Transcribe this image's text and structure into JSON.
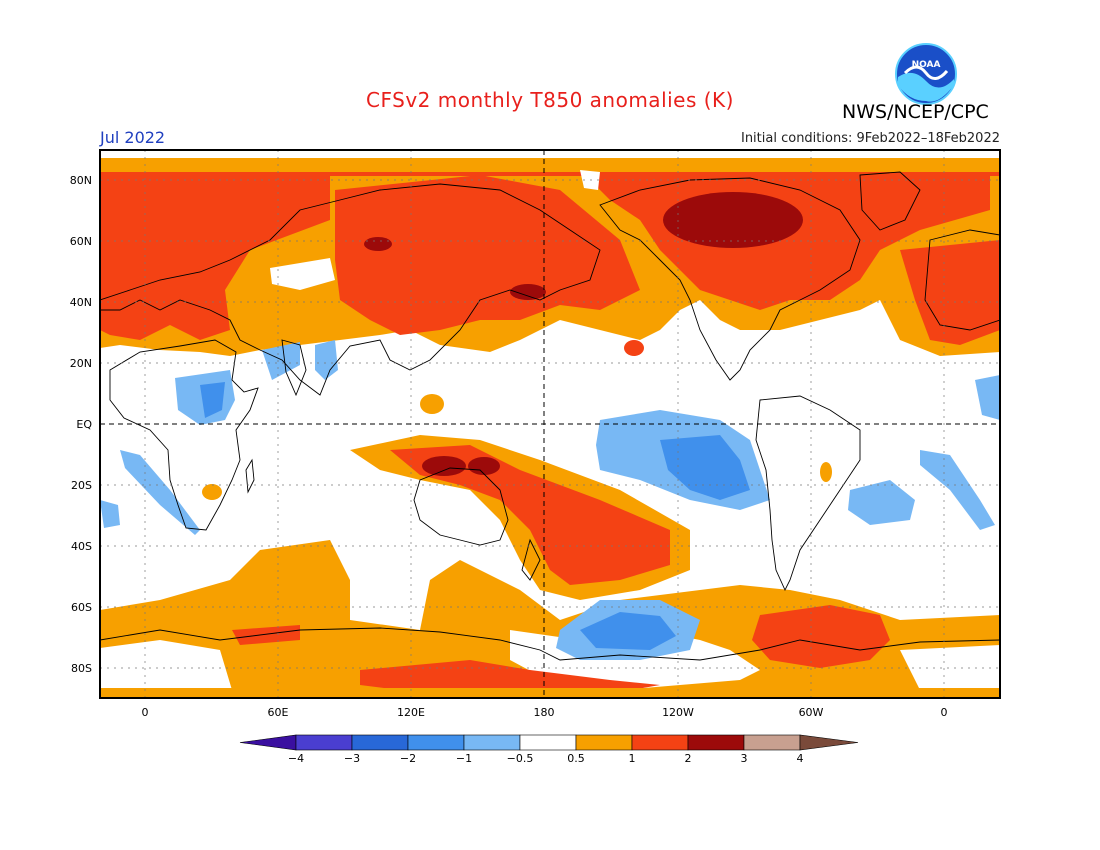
{
  "title": "CFSv2 monthly T850 anomalies (K)",
  "month": "Jul 2022",
  "agency": "NWS/NCEP/CPC",
  "initial_conditions": "Initial conditions: 9Feb2022–18Feb2022",
  "logo_text": "NOAA",
  "axes": {
    "lat_labels": [
      "80N",
      "60N",
      "40N",
      "20N",
      "EQ",
      "20S",
      "40S",
      "60S",
      "80S"
    ],
    "lon_labels": [
      "0",
      "60E",
      "120E",
      "180",
      "120W",
      "60W",
      "0"
    ]
  },
  "colorbar": {
    "labels": [
      "−4",
      "−3",
      "−2",
      "−1",
      "−0.5",
      "0.5",
      "1",
      "2",
      "3",
      "4"
    ],
    "colors": [
      "#3a0fa0",
      "#4a3ed0",
      "#2868d8",
      "#4090ec",
      "#78b8f4",
      "#ffffff",
      "#f7a000",
      "#f44214",
      "#9c0a0a",
      "#c8a090",
      "#7a4a3a"
    ]
  },
  "colors": {
    "title": "#e8201c",
    "month": "#1f3fbf",
    "land_outline": "#000000",
    "ocean_neutral": "#ffffff"
  }
}
